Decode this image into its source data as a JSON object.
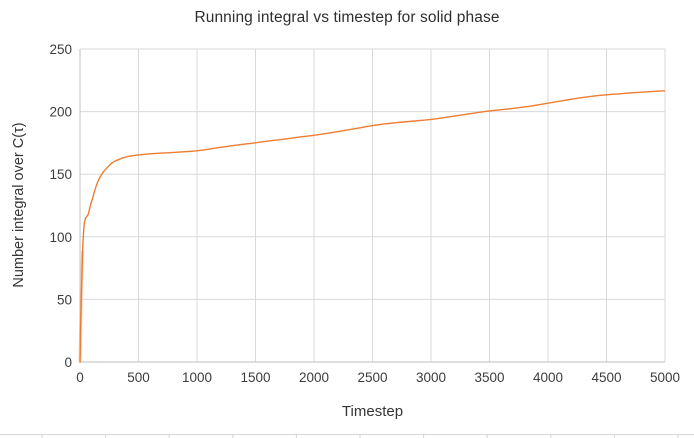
{
  "chart": {
    "title": "Running integral vs timestep for solid phase",
    "x_axis_title": "Timestep",
    "y_axis_title": "Number integral over C(τ)"
  },
  "colors": {
    "line": "#ED7D31",
    "line_glow": "#F2A36B",
    "gridline": "#D9D9D9",
    "axis_line": "#BFBFBF",
    "tick_text": "#3d3d3d",
    "sheet_edge": "#d6d6d6"
  },
  "chart_data": {
    "type": "line",
    "title": "Running integral vs timestep for solid phase",
    "xlabel": "Timestep",
    "ylabel": "Number integral over C(τ)",
    "xlim": [
      0,
      5000
    ],
    "ylim": [
      0,
      250
    ],
    "x_ticks": [
      0,
      500,
      1000,
      1500,
      2000,
      2500,
      3000,
      3500,
      4000,
      4500,
      5000
    ],
    "y_ticks": [
      0,
      50,
      100,
      150,
      200,
      250
    ],
    "grid": true,
    "legend": "none",
    "series": [
      {
        "points": [
          [
            0,
            0
          ],
          [
            2,
            8
          ],
          [
            4,
            20
          ],
          [
            6,
            30
          ],
          [
            8,
            38
          ],
          [
            10,
            46
          ],
          [
            12,
            54
          ],
          [
            14,
            62
          ],
          [
            16,
            69
          ],
          [
            18,
            76
          ],
          [
            20,
            82
          ],
          [
            22,
            88
          ],
          [
            24,
            93
          ],
          [
            26,
            97
          ],
          [
            28,
            100
          ],
          [
            30,
            103
          ],
          [
            32,
            105.5
          ],
          [
            34,
            108
          ],
          [
            36,
            110
          ],
          [
            38,
            111.5
          ],
          [
            40,
            112.5
          ],
          [
            43,
            113.5
          ],
          [
            46,
            114.5
          ],
          [
            50,
            115.5
          ],
          [
            55,
            116
          ],
          [
            60,
            116.5
          ],
          [
            65,
            117
          ],
          [
            70,
            118
          ],
          [
            75,
            119.5
          ],
          [
            80,
            121.5
          ],
          [
            85,
            123.5
          ],
          [
            90,
            125.5
          ],
          [
            95,
            127
          ],
          [
            100,
            128.5
          ],
          [
            110,
            131.5
          ],
          [
            120,
            135
          ],
          [
            130,
            138
          ],
          [
            140,
            141
          ],
          [
            150,
            143.5
          ],
          [
            160,
            145.5
          ],
          [
            170,
            147.5
          ],
          [
            180,
            149
          ],
          [
            190,
            150.5
          ],
          [
            200,
            152
          ],
          [
            215,
            153.5
          ],
          [
            230,
            155
          ],
          [
            245,
            156.5
          ],
          [
            260,
            158
          ],
          [
            280,
            159.5
          ],
          [
            300,
            160.5
          ],
          [
            325,
            161.5
          ],
          [
            350,
            162.5
          ],
          [
            375,
            163.3
          ],
          [
            400,
            163.9
          ],
          [
            425,
            164.4
          ],
          [
            450,
            164.8
          ],
          [
            475,
            165.1
          ],
          [
            500,
            165.4
          ],
          [
            550,
            165.9
          ],
          [
            600,
            166.3
          ],
          [
            650,
            166.6
          ],
          [
            700,
            166.9
          ],
          [
            750,
            167.1
          ],
          [
            800,
            167.4
          ],
          [
            850,
            167.7
          ],
          [
            900,
            168
          ],
          [
            950,
            168.3
          ],
          [
            1000,
            168.7
          ],
          [
            1050,
            169.3
          ],
          [
            1100,
            170
          ],
          [
            1150,
            170.8
          ],
          [
            1200,
            171.5
          ],
          [
            1250,
            172.1
          ],
          [
            1300,
            172.8
          ],
          [
            1350,
            173.4
          ],
          [
            1400,
            174
          ],
          [
            1450,
            174.5
          ],
          [
            1500,
            175.1
          ],
          [
            1550,
            175.8
          ],
          [
            1600,
            176.4
          ],
          [
            1650,
            177
          ],
          [
            1700,
            177.5
          ],
          [
            1750,
            178.1
          ],
          [
            1800,
            178.7
          ],
          [
            1850,
            179.4
          ],
          [
            1900,
            180
          ],
          [
            1950,
            180.5
          ],
          [
            2000,
            181.1
          ],
          [
            2050,
            181.8
          ],
          [
            2100,
            182.5
          ],
          [
            2150,
            183.2
          ],
          [
            2200,
            184
          ],
          [
            2250,
            184.8
          ],
          [
            2300,
            185.6
          ],
          [
            2350,
            186.4
          ],
          [
            2400,
            187.2
          ],
          [
            2450,
            188
          ],
          [
            2500,
            188.8
          ],
          [
            2550,
            189.5
          ],
          [
            2600,
            190.1
          ],
          [
            2650,
            190.6
          ],
          [
            2700,
            191.1
          ],
          [
            2750,
            191.6
          ],
          [
            2800,
            192
          ],
          [
            2850,
            192.4
          ],
          [
            2900,
            192.8
          ],
          [
            2950,
            193.2
          ],
          [
            3000,
            193.7
          ],
          [
            3050,
            194.3
          ],
          [
            3100,
            195
          ],
          [
            3150,
            195.7
          ],
          [
            3200,
            196.4
          ],
          [
            3250,
            197.1
          ],
          [
            3300,
            197.8
          ],
          [
            3350,
            198.5
          ],
          [
            3400,
            199.2
          ],
          [
            3450,
            199.9
          ],
          [
            3500,
            200.5
          ],
          [
            3550,
            201
          ],
          [
            3600,
            201.5
          ],
          [
            3650,
            202
          ],
          [
            3700,
            202.5
          ],
          [
            3750,
            203.1
          ],
          [
            3800,
            203.7
          ],
          [
            3850,
            204.3
          ],
          [
            3900,
            205.1
          ],
          [
            3950,
            205.9
          ],
          [
            4000,
            206.7
          ],
          [
            4050,
            207.5
          ],
          [
            4100,
            208.3
          ],
          [
            4150,
            209.1
          ],
          [
            4200,
            209.9
          ],
          [
            4250,
            210.6
          ],
          [
            4300,
            211.3
          ],
          [
            4350,
            211.9
          ],
          [
            4400,
            212.5
          ],
          [
            4450,
            213
          ],
          [
            4500,
            213.4
          ],
          [
            4550,
            213.8
          ],
          [
            4600,
            214.1
          ],
          [
            4650,
            214.5
          ],
          [
            4700,
            214.9
          ],
          [
            4750,
            215.2
          ],
          [
            4800,
            215.5
          ],
          [
            4850,
            215.8
          ],
          [
            4900,
            216.1
          ],
          [
            4950,
            216.4
          ],
          [
            5000,
            216.6
          ]
        ]
      }
    ]
  }
}
